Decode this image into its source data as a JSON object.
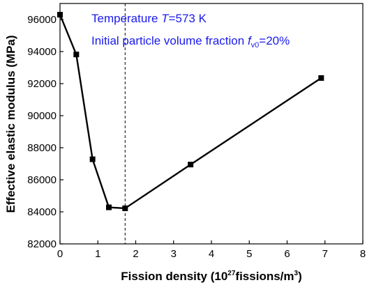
{
  "chart_data": {
    "type": "line",
    "xlabel": {
      "prefix": "Fission density (10",
      "sup": "27",
      "mid": "fissions/m",
      "sup2": "3",
      "suffix": ")"
    },
    "ylabel": "Effective elastic modulus (MPa)",
    "xlim": [
      0,
      8
    ],
    "ylim": [
      82000,
      97000
    ],
    "xticks": [
      0,
      1,
      2,
      3,
      4,
      5,
      6,
      7,
      8
    ],
    "yticks": [
      82000,
      84000,
      86000,
      88000,
      90000,
      92000,
      94000,
      96000
    ],
    "series": [
      {
        "x": [
          0,
          0.43,
          0.86,
          1.29,
          1.72,
          3.45,
          6.9
        ],
        "y": [
          96300,
          93820,
          87280,
          84280,
          84220,
          86950,
          92350
        ],
        "color": "#000000",
        "marker": "square"
      }
    ],
    "reference_line": {
      "x": 1.72,
      "style": "dashed"
    },
    "annotations": {
      "line1_text": "Temperature ",
      "line1_var": "T",
      "line1_value": "=573 K",
      "line2_text": "Initial particle volume fraction ",
      "line2_var": "f",
      "line2_sub": "v0",
      "line2_value": "=20%",
      "color": "#1a1aee"
    }
  }
}
